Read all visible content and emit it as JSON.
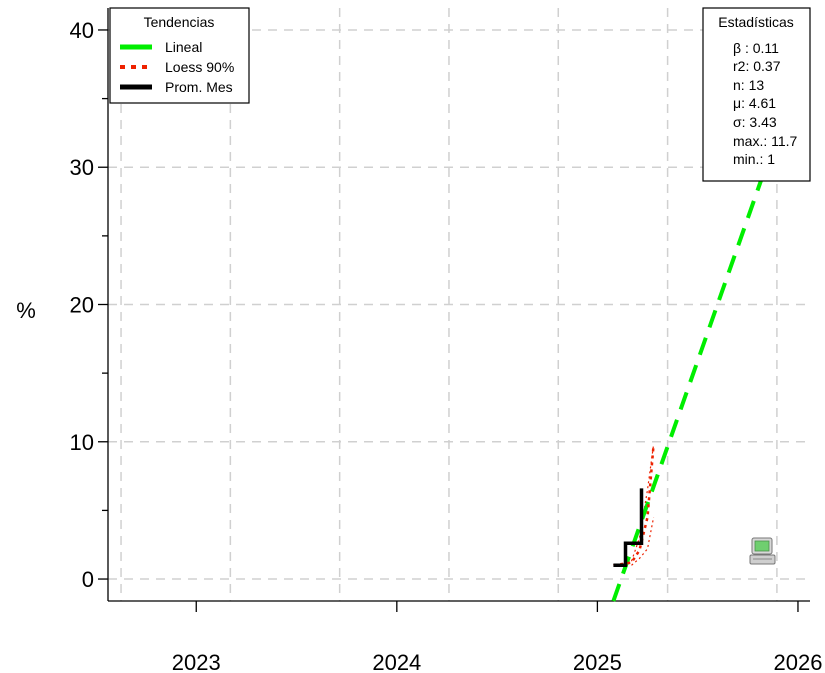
{
  "chart_data": {
    "type": "line",
    "xlabel": "",
    "ylabel": "%",
    "xlim": [
      2022.56,
      2026.06
    ],
    "ylim": [
      -1.6,
      41.6
    ],
    "x_ticks": [
      2023,
      2024,
      2025,
      2026
    ],
    "y_ticks": [
      0,
      10,
      20,
      30,
      40
    ],
    "grid": true,
    "series": [
      {
        "name": "Lineal",
        "color": "#00ee00",
        "style": "dashed",
        "points": [
          [
            2025.08,
            -1.6
          ],
          [
            2025.94,
            34.2
          ]
        ]
      },
      {
        "name": "Loess 90%",
        "color": "#ee2200",
        "style": "dotted",
        "points": [
          [
            2025.08,
            1.0
          ],
          [
            2025.17,
            1.2
          ],
          [
            2025.21,
            2.1
          ],
          [
            2025.25,
            4.5
          ],
          [
            2025.28,
            9.8
          ]
        ]
      },
      {
        "name": "Prom. Mes",
        "color": "#000000",
        "style": "step",
        "points": [
          [
            2025.08,
            1.0
          ],
          [
            2025.14,
            1.0
          ],
          [
            2025.14,
            2.6
          ],
          [
            2025.22,
            2.6
          ],
          [
            2025.22,
            6.6
          ]
        ]
      }
    ],
    "loess_band": {
      "upper": [
        [
          2025.17,
          1.3
        ],
        [
          2025.21,
          3.0
        ],
        [
          2025.25,
          6.5
        ],
        [
          2025.28,
          9.8
        ]
      ],
      "lower": [
        [
          2025.17,
          1.0
        ],
        [
          2025.21,
          1.5
        ],
        [
          2025.25,
          2.2
        ],
        [
          2025.28,
          4.5
        ]
      ]
    }
  },
  "legend": {
    "title": "Tendencias",
    "items": [
      {
        "label": "Lineal",
        "color": "#00ee00",
        "style": "dashed"
      },
      {
        "label": "Loess 90%",
        "color": "#ee2200",
        "style": "dotted"
      },
      {
        "label": "Prom. Mes",
        "color": "#000000",
        "style": "solid"
      }
    ]
  },
  "stats": {
    "title": "Estadísticas",
    "lines": [
      "β : 0.11",
      "r2: 0.37",
      "n: 13",
      "μ: 4.61",
      "σ: 3.43",
      "max.: 11.7",
      "min.: 1"
    ]
  },
  "watermark_icon": "computer-icon"
}
